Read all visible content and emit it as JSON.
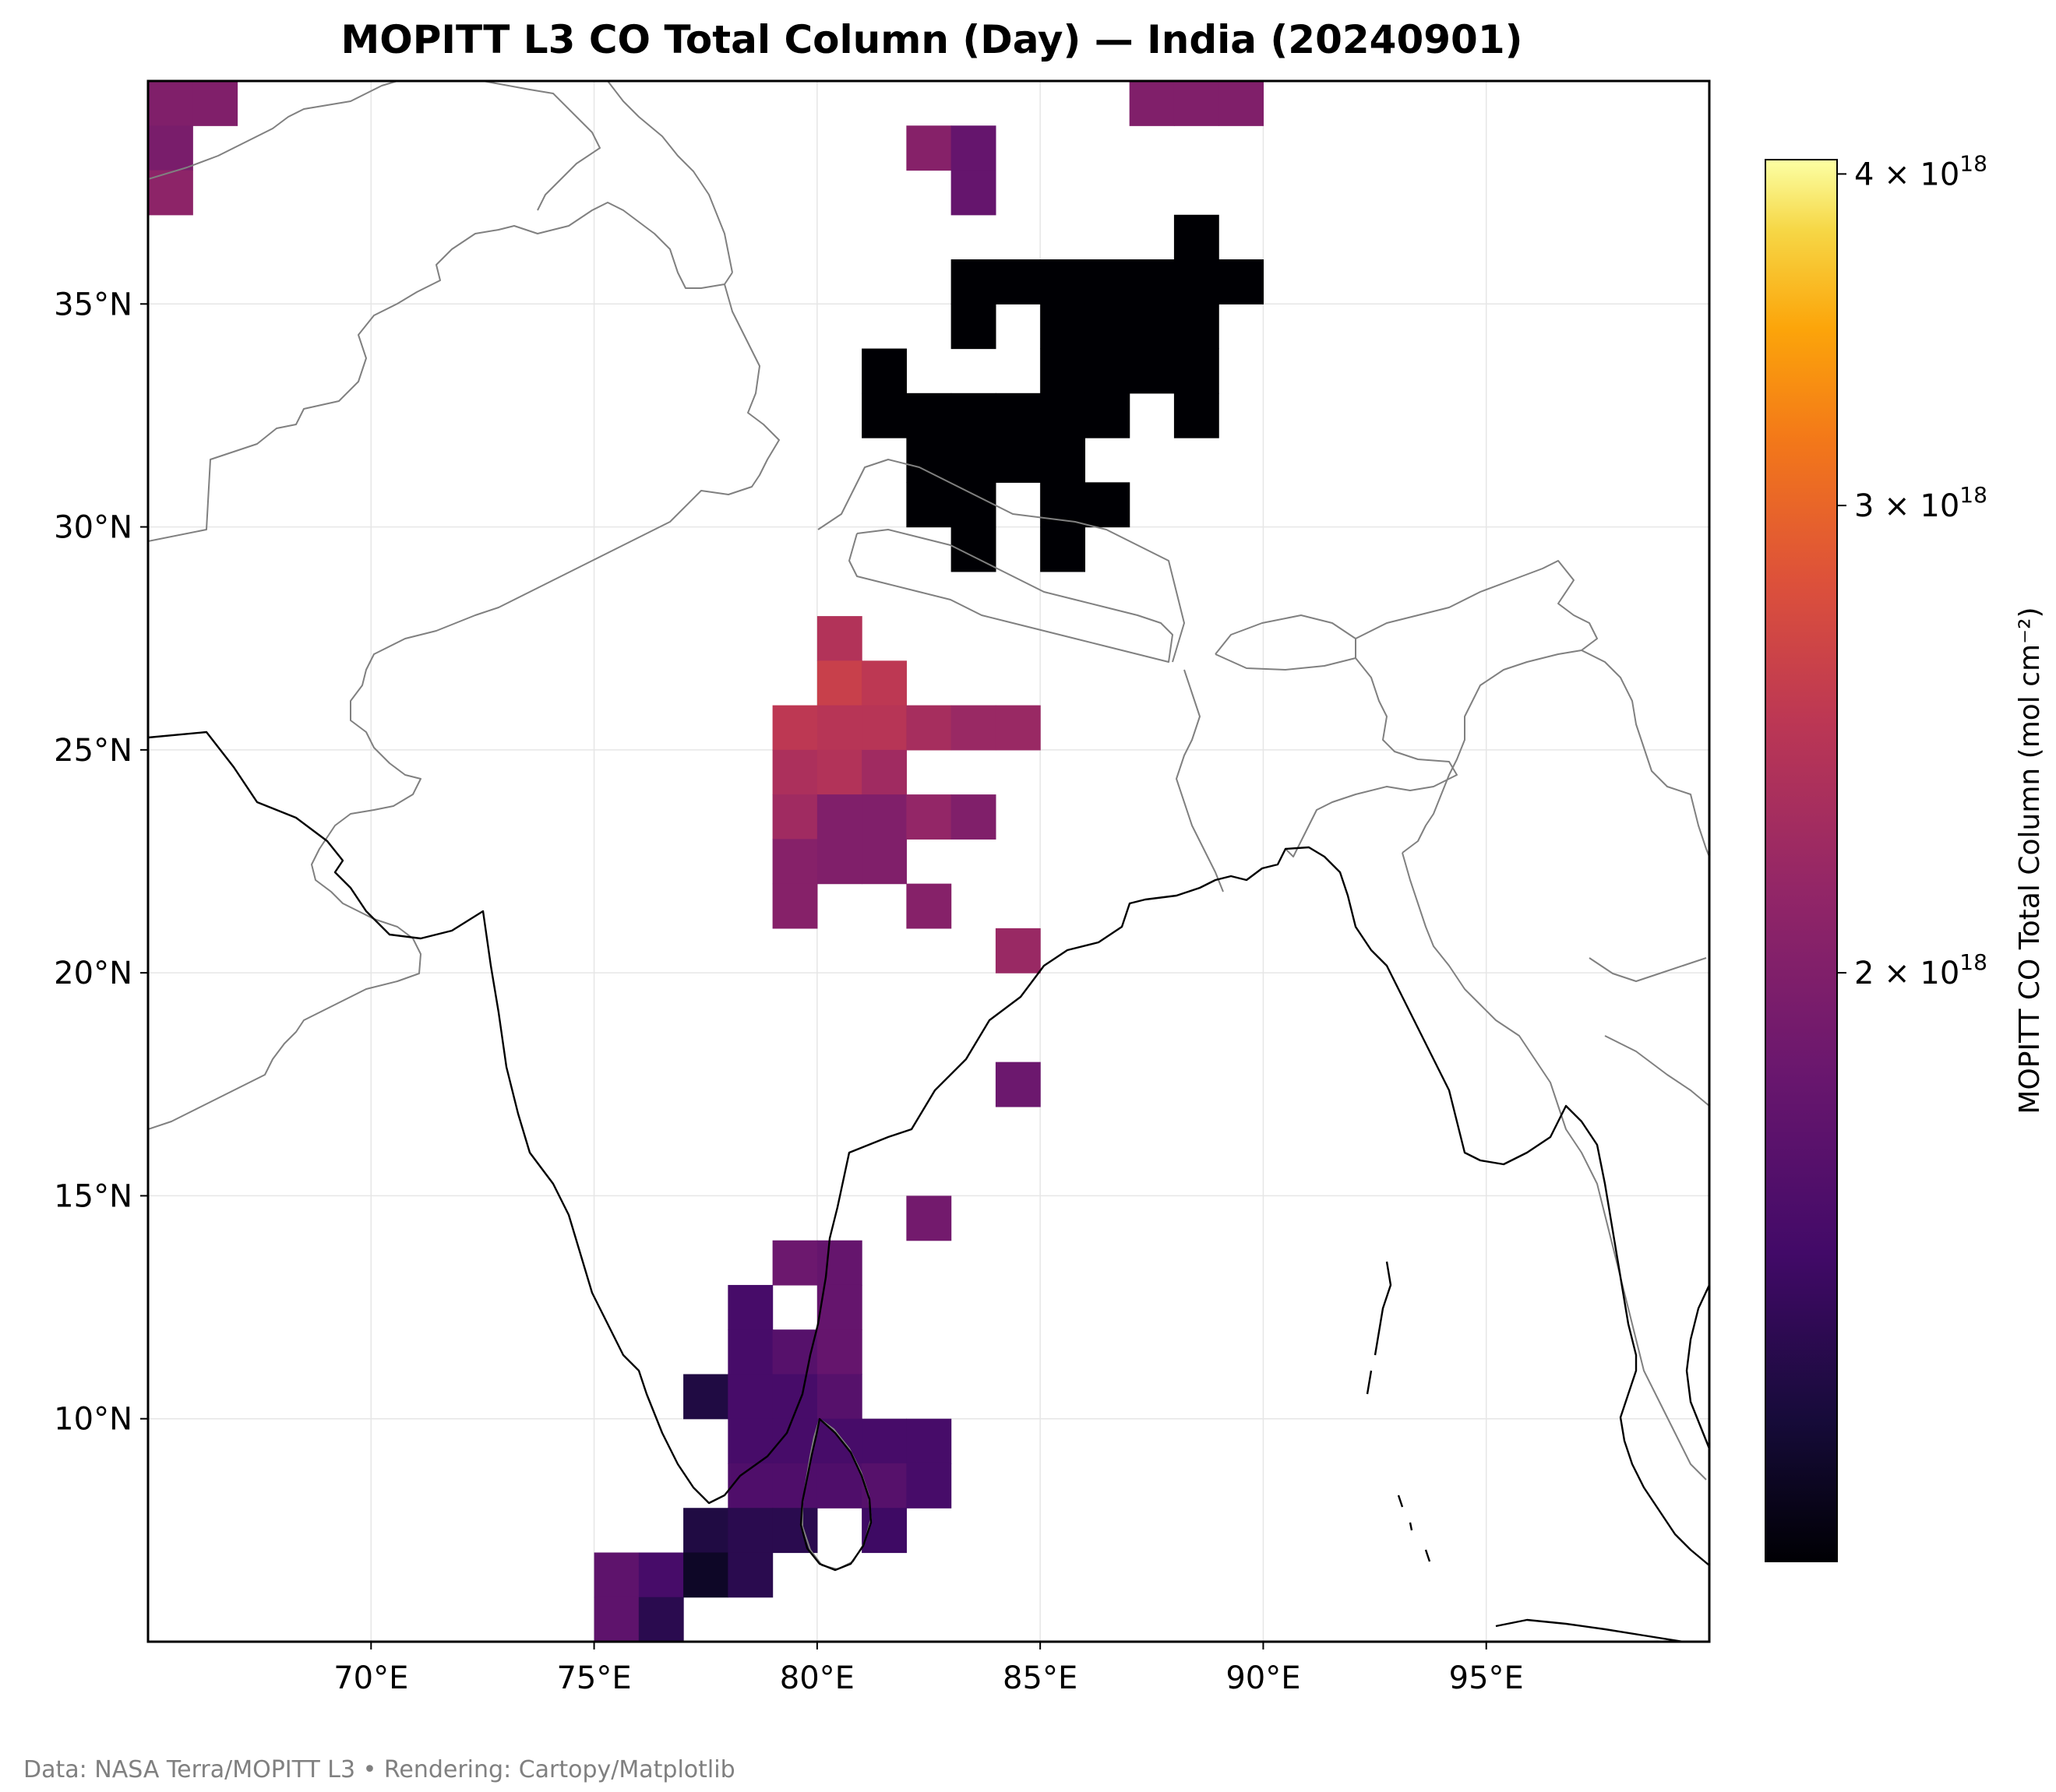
{
  "title": "MOPITT L3 CO Total Column (Day) — India (20240901)",
  "credit": "Data: NASA Terra/MOPITT L3 • Rendering: Cartopy/Matplotlib",
  "colors": {
    "background": "#ffffff",
    "coastline": "#000000",
    "borders": "#808080",
    "gridlines": "#e6e6e6"
  },
  "map": {
    "extent": {
      "lon": [
        65,
        100
      ],
      "lat": [
        5,
        40
      ]
    },
    "xticks": [
      {
        "value": 70,
        "label": "70°E"
      },
      {
        "value": 75,
        "label": "75°E"
      },
      {
        "value": 80,
        "label": "80°E"
      },
      {
        "value": 85,
        "label": "85°E"
      },
      {
        "value": 90,
        "label": "90°E"
      },
      {
        "value": 95,
        "label": "95°E"
      }
    ],
    "yticks": [
      {
        "value": 10,
        "label": "10°N"
      },
      {
        "value": 15,
        "label": "15°N"
      },
      {
        "value": 20,
        "label": "20°N"
      },
      {
        "value": 25,
        "label": "25°N"
      },
      {
        "value": 30,
        "label": "30°N"
      },
      {
        "value": 35,
        "label": "35°N"
      }
    ],
    "cell_size_deg": 1
  },
  "colorbar": {
    "label": "MOPITT CO Total Column (mol cm⁻²)",
    "scale": "log",
    "range": [
      1.2e+18,
      4.05e+18
    ],
    "ticks": [
      {
        "value": 2e+18,
        "label_mant": "2 × 10",
        "label_exp": "18"
      },
      {
        "value": 3e+18,
        "label_mant": "3 × 10",
        "label_exp": "18"
      },
      {
        "value": 4e+18,
        "label_mant": "4 × 10",
        "label_exp": "18"
      }
    ]
  },
  "chart_data": {
    "type": "heatmap",
    "title": "MOPITT L3 CO Total Column (Day) — India (20240901)",
    "value_unit": "mol cm⁻²",
    "cells": [
      {
        "lon": 65,
        "lat": 39,
        "value": 2e+18
      },
      {
        "lon": 66,
        "lat": 39,
        "value": 2e+18
      },
      {
        "lon": 65,
        "lat": 38,
        "value": 1.95e+18
      },
      {
        "lon": 65,
        "lat": 37,
        "value": 2.1e+18
      },
      {
        "lon": 87,
        "lat": 39,
        "value": 2e+18
      },
      {
        "lon": 88,
        "lat": 39,
        "value": 2e+18
      },
      {
        "lon": 89,
        "lat": 39,
        "value": 2e+18
      },
      {
        "lon": 82,
        "lat": 38,
        "value": 2.05e+18
      },
      {
        "lon": 83,
        "lat": 38,
        "value": 1.8e+18
      },
      {
        "lon": 83,
        "lat": 37,
        "value": 1.8e+18
      },
      {
        "lon": 88,
        "lat": 36,
        "value": 1.2e+18
      },
      {
        "lon": 83,
        "lat": 35,
        "value": 1.2e+18
      },
      {
        "lon": 84,
        "lat": 35,
        "value": 1.2e+18
      },
      {
        "lon": 85,
        "lat": 35,
        "value": 1.2e+18
      },
      {
        "lon": 86,
        "lat": 35,
        "value": 1.2e+18
      },
      {
        "lon": 87,
        "lat": 35,
        "value": 1.2e+18
      },
      {
        "lon": 88,
        "lat": 35,
        "value": 1.2e+18
      },
      {
        "lon": 89,
        "lat": 35,
        "value": 1.2e+18
      },
      {
        "lon": 83,
        "lat": 34,
        "value": 1.2e+18
      },
      {
        "lon": 85,
        "lat": 34,
        "value": 1.2e+18
      },
      {
        "lon": 86,
        "lat": 34,
        "value": 1.2e+18
      },
      {
        "lon": 87,
        "lat": 34,
        "value": 1.2e+18
      },
      {
        "lon": 88,
        "lat": 34,
        "value": 1.2e+18
      },
      {
        "lon": 81,
        "lat": 33,
        "value": 1.2e+18
      },
      {
        "lon": 85,
        "lat": 33,
        "value": 1.2e+18
      },
      {
        "lon": 86,
        "lat": 33,
        "value": 1.2e+18
      },
      {
        "lon": 87,
        "lat": 33,
        "value": 1.2e+18
      },
      {
        "lon": 88,
        "lat": 33,
        "value": 1.2e+18
      },
      {
        "lon": 81,
        "lat": 32,
        "value": 1.2e+18
      },
      {
        "lon": 82,
        "lat": 32,
        "value": 1.2e+18
      },
      {
        "lon": 83,
        "lat": 32,
        "value": 1.2e+18
      },
      {
        "lon": 84,
        "lat": 32,
        "value": 1.2e+18
      },
      {
        "lon": 85,
        "lat": 32,
        "value": 1.2e+18
      },
      {
        "lon": 86,
        "lat": 32,
        "value": 1.2e+18
      },
      {
        "lon": 88,
        "lat": 32,
        "value": 1.2e+18
      },
      {
        "lon": 82,
        "lat": 31,
        "value": 1.2e+18
      },
      {
        "lon": 83,
        "lat": 31,
        "value": 1.2e+18
      },
      {
        "lon": 84,
        "lat": 31,
        "value": 1.2e+18
      },
      {
        "lon": 85,
        "lat": 31,
        "value": 1.2e+18
      },
      {
        "lon": 82,
        "lat": 30,
        "value": 1.2e+18
      },
      {
        "lon": 83,
        "lat": 30,
        "value": 1.2e+18
      },
      {
        "lon": 85,
        "lat": 30,
        "value": 1.2e+18
      },
      {
        "lon": 86,
        "lat": 30,
        "value": 1.2e+18
      },
      {
        "lon": 83,
        "lat": 29,
        "value": 1.2e+18
      },
      {
        "lon": 85,
        "lat": 29,
        "value": 1.2e+18
      },
      {
        "lon": 80,
        "lat": 27,
        "value": 2.4e+18
      },
      {
        "lon": 80,
        "lat": 26,
        "value": 2.6e+18
      },
      {
        "lon": 81,
        "lat": 26,
        "value": 2.5e+18
      },
      {
        "lon": 79,
        "lat": 25,
        "value": 2.5e+18
      },
      {
        "lon": 80,
        "lat": 25,
        "value": 2.45e+18
      },
      {
        "lon": 81,
        "lat": 25,
        "value": 2.45e+18
      },
      {
        "lon": 82,
        "lat": 25,
        "value": 2.3e+18
      },
      {
        "lon": 83,
        "lat": 25,
        "value": 2.2e+18
      },
      {
        "lon": 84,
        "lat": 25,
        "value": 2.2e+18
      },
      {
        "lon": 79,
        "lat": 24,
        "value": 2.35e+18
      },
      {
        "lon": 80,
        "lat": 24,
        "value": 2.4e+18
      },
      {
        "lon": 81,
        "lat": 24,
        "value": 2.25e+18
      },
      {
        "lon": 79,
        "lat": 23,
        "value": 2.25e+18
      },
      {
        "lon": 80,
        "lat": 23,
        "value": 2e+18
      },
      {
        "lon": 81,
        "lat": 23,
        "value": 2e+18
      },
      {
        "lon": 82,
        "lat": 23,
        "value": 2.15e+18
      },
      {
        "lon": 83,
        "lat": 23,
        "value": 2e+18
      },
      {
        "lon": 79,
        "lat": 22,
        "value": 2.05e+18
      },
      {
        "lon": 80,
        "lat": 22,
        "value": 2e+18
      },
      {
        "lon": 81,
        "lat": 22,
        "value": 2e+18
      },
      {
        "lon": 79,
        "lat": 21,
        "value": 2.05e+18
      },
      {
        "lon": 82,
        "lat": 21,
        "value": 2.05e+18
      },
      {
        "lon": 84,
        "lat": 20,
        "value": 2.2e+18
      },
      {
        "lon": 84,
        "lat": 17,
        "value": 1.85e+18
      },
      {
        "lon": 82,
        "lat": 14,
        "value": 1.9e+18
      },
      {
        "lon": 79,
        "lat": 13,
        "value": 1.85e+18
      },
      {
        "lon": 80,
        "lat": 13,
        "value": 1.8e+18
      },
      {
        "lon": 78,
        "lat": 12,
        "value": 1.6e+18
      },
      {
        "lon": 80,
        "lat": 12,
        "value": 1.8e+18
      },
      {
        "lon": 78,
        "lat": 11,
        "value": 1.6e+18
      },
      {
        "lon": 79,
        "lat": 11,
        "value": 1.7e+18
      },
      {
        "lon": 80,
        "lat": 11,
        "value": 1.8e+18
      },
      {
        "lon": 77,
        "lat": 10,
        "value": 1.4e+18
      },
      {
        "lon": 78,
        "lat": 10,
        "value": 1.6e+18
      },
      {
        "lon": 79,
        "lat": 10,
        "value": 1.6e+18
      },
      {
        "lon": 80,
        "lat": 10,
        "value": 1.7e+18
      },
      {
        "lon": 78,
        "lat": 9,
        "value": 1.6e+18
      },
      {
        "lon": 79,
        "lat": 9,
        "value": 1.6e+18
      },
      {
        "lon": 80,
        "lat": 9,
        "value": 1.6e+18
      },
      {
        "lon": 81,
        "lat": 9,
        "value": 1.6e+18
      },
      {
        "lon": 82,
        "lat": 9,
        "value": 1.6e+18
      },
      {
        "lon": 78,
        "lat": 8,
        "value": 1.65e+18
      },
      {
        "lon": 79,
        "lat": 8,
        "value": 1.65e+18
      },
      {
        "lon": 80,
        "lat": 8,
        "value": 1.65e+18
      },
      {
        "lon": 81,
        "lat": 8,
        "value": 1.7e+18
      },
      {
        "lon": 82,
        "lat": 8,
        "value": 1.6e+18
      },
      {
        "lon": 77,
        "lat": 7,
        "value": 1.4e+18
      },
      {
        "lon": 78,
        "lat": 7,
        "value": 1.45e+18
      },
      {
        "lon": 79,
        "lat": 7,
        "value": 1.45e+18
      },
      {
        "lon": 81,
        "lat": 7,
        "value": 1.55e+18
      },
      {
        "lon": 75,
        "lat": 6,
        "value": 1.75e+18
      },
      {
        "lon": 76,
        "lat": 6,
        "value": 1.6e+18
      },
      {
        "lon": 77,
        "lat": 6,
        "value": 1.3e+18
      },
      {
        "lon": 78,
        "lat": 6,
        "value": 1.45e+18
      },
      {
        "lon": 75,
        "lat": 5,
        "value": 1.75e+18
      },
      {
        "lon": 76,
        "lat": 5,
        "value": 1.45e+18
      }
    ]
  }
}
